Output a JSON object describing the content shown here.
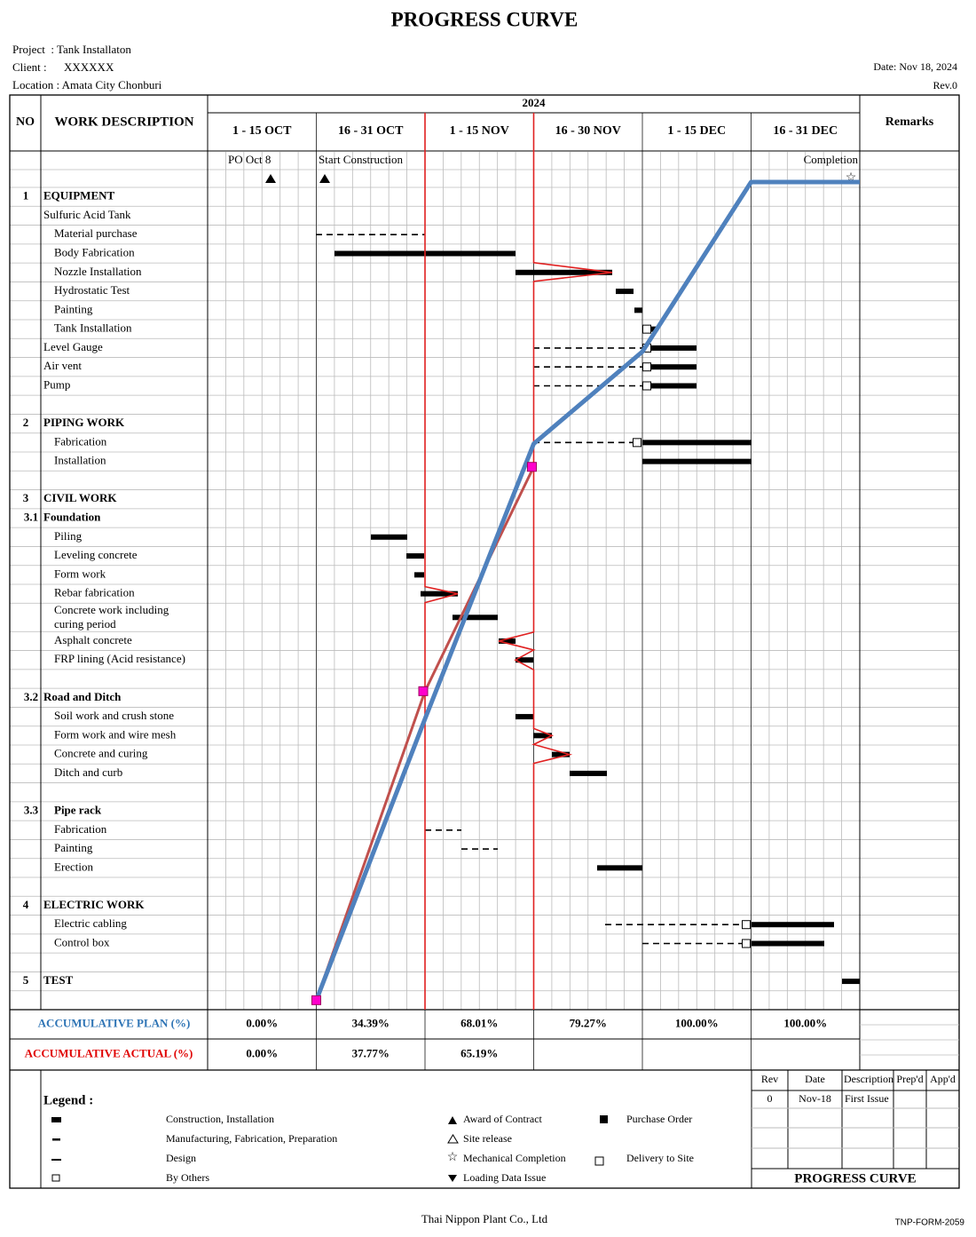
{
  "title": "PROGRESS CURVE",
  "header": {
    "project": "Project  : Tank Installaton",
    "client": "Client :",
    "client_name": "XXXXXX",
    "location": "Location : Amata City Chonburi",
    "date": "Date: Nov 18, 2024",
    "rev": "Rev.0"
  },
  "table": {
    "no": "NO",
    "description": "WORK DESCRIPTION",
    "year": "2024",
    "periods": [
      "1 - 15 OCT",
      "16 - 31 OCT",
      "1 - 15 NOV",
      "16 - 30 NOV",
      "1 - 15 DEC",
      "16 - 31 DEC"
    ],
    "remarks": "Remarks",
    "milestones": [
      "PO Oct 8",
      "Start Construction",
      "Completion"
    ],
    "rows": [
      {
        "no": "1",
        "label": "EQUIPMENT"
      },
      {
        "label": "Sulfuric Acid Tank"
      },
      {
        "label": "Material purchase"
      },
      {
        "label": "Body Fabrication"
      },
      {
        "label": "Nozzle Installation"
      },
      {
        "label": "Hydrostatic Test"
      },
      {
        "label": "Painting"
      },
      {
        "label": "Tank Installation"
      },
      {
        "label": "Level Gauge"
      },
      {
        "label": "Air vent"
      },
      {
        "label": "Pump"
      },
      {
        "no": "2",
        "label": "PIPING WORK"
      },
      {
        "label": "Fabrication"
      },
      {
        "label": "Installation"
      },
      {
        "no": "3",
        "label": "CIVIL WORK"
      },
      {
        "no": "3.1",
        "label": "Foundation"
      },
      {
        "label": "Piling"
      },
      {
        "label": "Leveling concrete"
      },
      {
        "label": "Form work"
      },
      {
        "label": "Rebar fabrication"
      },
      {
        "label": "Concrete work including curing period"
      },
      {
        "label": "Asphalt concrete"
      },
      {
        "label": "FRP lining (Acid resistance)"
      },
      {
        "no": "3.2",
        "label": "Road and Ditch"
      },
      {
        "label": "Soil work and crush stone"
      },
      {
        "label": "Form work and wire mesh"
      },
      {
        "label": "Concrete and curing"
      },
      {
        "label": "Ditch and curb"
      },
      {
        "no": "3.3",
        "label": "Pipe rack"
      },
      {
        "label": "Fabrication"
      },
      {
        "label": "Painting"
      },
      {
        "label": "Erection"
      },
      {
        "no": "4",
        "label": "ELECTRIC WORK"
      },
      {
        "label": "Electric cabling"
      },
      {
        "label": "Control box"
      },
      {
        "no": "5",
        "label": "TEST"
      }
    ],
    "plan": {
      "label": "ACCUMULATIVE PLAN (%)",
      "values": [
        0,
        34.39,
        68.01,
        79.27,
        100,
        100
      ],
      "value_labels": [
        "0.00%",
        "34.39%",
        "68.01%",
        "79.27%",
        "100.00%",
        "100.00%"
      ]
    },
    "actual": {
      "label": "ACCUMULATIVE ACTUAL (%)",
      "values": [
        0,
        37.77,
        65.19
      ],
      "value_labels": [
        "0.00%",
        "37.77%",
        "65.19%"
      ]
    }
  },
  "legend": {
    "title": "Legend :",
    "items": [
      "Construction, Installation",
      "Manufacturing, Fabrication, Preparation",
      "Design",
      "By Others",
      "Award of Contract",
      "Site release",
      "Mechanical Completion",
      "Loading Data Issue",
      "Purchase Order",
      "Delivery to Site"
    ]
  },
  "revision": {
    "headers": [
      "Rev",
      "Date",
      "Description",
      "Prep'd",
      "App'd"
    ],
    "rows": [
      [
        "0",
        "Nov-18",
        "First Issue"
      ]
    ],
    "title": "PROGRESS CURVE"
  },
  "footer": {
    "company": "Thai Nippon Plant Co., Ltd",
    "form": "TNP-FORM-2059"
  }
}
